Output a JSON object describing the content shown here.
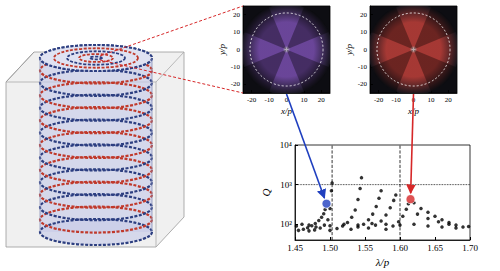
{
  "chart_data": [
    {
      "type": "field",
      "xlabel": "x/p",
      "ylabel": "y/p",
      "xlim": [
        -25,
        25
      ],
      "ylim": [
        -25,
        25
      ],
      "xticks": [
        -20,
        -10,
        0,
        10,
        20
      ],
      "yticks": [
        -20,
        -10,
        0,
        10,
        20
      ],
      "circle_center": [
        0,
        0
      ],
      "circle_radius": 21,
      "color": "#7a4fb0",
      "grid": false
    },
    {
      "type": "field",
      "xlabel": "x/p",
      "ylabel": "y/p",
      "xlim": [
        -25,
        25
      ],
      "ylim": [
        -25,
        25
      ],
      "xticks": [
        -20,
        -10,
        0,
        10,
        20
      ],
      "yticks": [
        -20,
        -10,
        0,
        10,
        20
      ],
      "circle_center": [
        0,
        0
      ],
      "circle_radius": 21,
      "color": "#c0403a",
      "grid": false
    },
    {
      "type": "scatter",
      "xlabel": "λ/p",
      "ylabel": "Q",
      "log": "y",
      "grid": false,
      "xlim": [
        1.45,
        1.7
      ],
      "ylim": [
        40,
        10000
      ],
      "xticks": [
        1.45,
        {
          "value": 1.5,
          "label": "1.50"
        },
        1.55,
        {
          "value": 1.6,
          "label": "1.60"
        },
        1.65,
        {
          "value": 1.7,
          "label": "1.70"
        }
      ],
      "yticks": [
        {
          "value": 100,
          "label": "10²"
        },
        {
          "value": 1000,
          "label": "10³"
        },
        {
          "value": 10000,
          "label": "10⁴"
        }
      ],
      "vlines": [
        1.503,
        1.6
      ],
      "hlines": [
        1000
      ],
      "series": [
        {
          "color": "#000000",
          "marker": "circle",
          "x": [
            1.455,
            1.462,
            1.468,
            1.474,
            1.479,
            1.484,
            1.488,
            1.491,
            1.493,
            1.47,
            1.478,
            1.486,
            1.492,
            1.497,
            1.5,
            1.502,
            1.503,
            1.5,
            1.51,
            1.518,
            1.525,
            1.531,
            1.536,
            1.54,
            1.543,
            1.545,
            1.53,
            1.54,
            1.548,
            1.555,
            1.561,
            1.566,
            1.57,
            1.573,
            1.555,
            1.565,
            1.573,
            1.58,
            1.586,
            1.591,
            1.594,
            1.58,
            1.59,
            1.598,
            1.604,
            1.609,
            1.612,
            1.62,
            1.63,
            1.64,
            1.65,
            1.66,
            1.67,
            1.68,
            1.69,
            1.625,
            1.64,
            1.655,
            1.67,
            1.452,
            1.46,
            1.47,
            1.48,
            1.5,
            1.52,
            1.54,
            1.56,
            1.58,
            1.6,
            1.62,
            1.64,
            1.66,
            1.68,
            1.698
          ],
          "values": [
            70,
            75,
            82,
            92,
            105,
            125,
            150,
            185,
            235,
            68,
            72,
            80,
            95,
            130,
            250,
            700,
            1100,
            70,
            78,
            90,
            110,
            150,
            230,
            420,
            800,
            1500,
            75,
            85,
            100,
            130,
            180,
            280,
            450,
            700,
            80,
            95,
            120,
            170,
            260,
            400,
            550,
            75,
            90,
            115,
            160,
            240,
            330,
            350,
            250,
            200,
            160,
            130,
            110,
            95,
            85,
            180,
            140,
            115,
            100,
            90,
            100,
            95,
            85,
            92,
            100,
            95,
            105,
            100,
            95,
            100,
            90,
            85,
            80,
            88
          ]
        },
        {
          "color": "#1f3fbf",
          "marker": "circle",
          "x": [
            1.495
          ],
          "values": [
            330
          ]
        },
        {
          "color": "#d62728",
          "marker": "circle",
          "x": [
            1.615
          ],
          "values": [
            430
          ]
        }
      ]
    }
  ]
}
